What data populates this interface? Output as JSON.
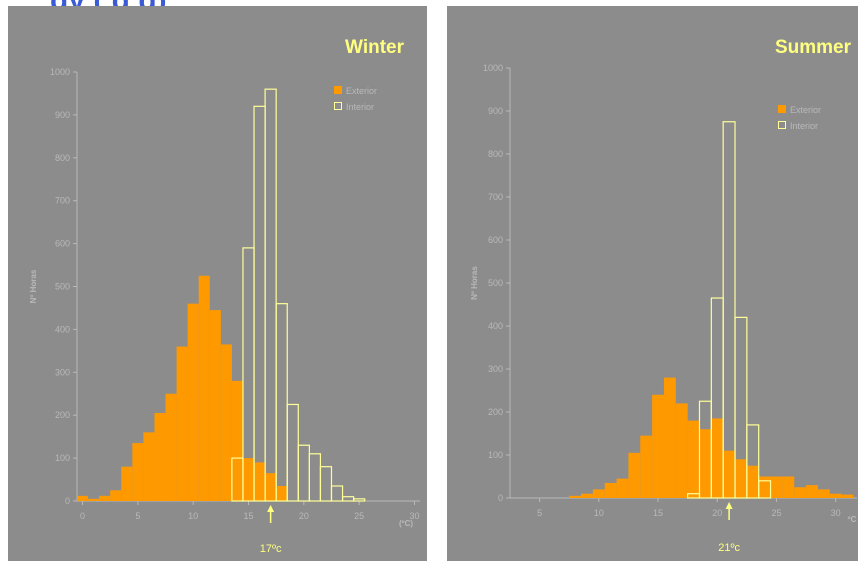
{
  "title": "gy      (      g     g)",
  "colors": {
    "panel": "#8c8c8c",
    "exterior": "#ff9900",
    "interior": "#ffff99",
    "highlight": "#ffff80",
    "axis_text": "#b9b9b9"
  },
  "chart_data": [
    {
      "type": "bar",
      "title": "Winter",
      "ylabel": "Nº Horas",
      "xlabel": "(ºC)",
      "bin_width": 1,
      "xlim": [
        -0.5,
        30.5
      ],
      "ylim": [
        0,
        1000
      ],
      "xticks": [
        0,
        5,
        10,
        15,
        20,
        25,
        30
      ],
      "yticks": [
        0,
        100,
        200,
        300,
        400,
        500,
        600,
        700,
        800,
        900,
        1000
      ],
      "legend_position": "top-right",
      "marker": {
        "value": 17,
        "label": "17ºc"
      },
      "series": [
        {
          "name": "Exterior",
          "style": "filled",
          "x": [
            0,
            1,
            2,
            3,
            4,
            5,
            6,
            7,
            8,
            9,
            10,
            11,
            12,
            13,
            14,
            15,
            16,
            17,
            18
          ],
          "values": [
            12,
            5,
            12,
            25,
            80,
            135,
            160,
            205,
            250,
            360,
            460,
            525,
            445,
            365,
            280,
            100,
            90,
            65,
            35
          ]
        },
        {
          "name": "Interior",
          "style": "outline",
          "x": [
            14,
            15,
            16,
            17,
            18,
            19,
            20,
            21,
            22,
            23,
            24,
            25
          ],
          "values": [
            100,
            590,
            920,
            960,
            460,
            225,
            130,
            110,
            80,
            35,
            10,
            5
          ]
        }
      ]
    },
    {
      "type": "bar",
      "title": "Summer",
      "ylabel": "Nº Horas",
      "xlabel": "ºC",
      "bin_width": 1,
      "xlim": [
        2.5,
        31.8
      ],
      "ylim": [
        0,
        1000
      ],
      "xticks": [
        5,
        10,
        15,
        20,
        25,
        30
      ],
      "yticks": [
        0,
        100,
        200,
        300,
        400,
        500,
        600,
        700,
        800,
        900,
        1000
      ],
      "legend_position": "top-right",
      "marker": {
        "value": 21,
        "label": "21ºc"
      },
      "series": [
        {
          "name": "Exterior",
          "style": "filled",
          "x": [
            8,
            9,
            10,
            11,
            12,
            13,
            14,
            15,
            16,
            17,
            18,
            19,
            20,
            21,
            22,
            23,
            24,
            25,
            26,
            27,
            28,
            29,
            30,
            31
          ],
          "values": [
            5,
            10,
            20,
            35,
            45,
            105,
            145,
            240,
            280,
            220,
            180,
            160,
            185,
            110,
            90,
            75,
            50,
            50,
            50,
            25,
            30,
            20,
            10,
            8
          ]
        },
        {
          "name": "Interior",
          "style": "outline",
          "x": [
            18,
            19,
            20,
            21,
            22,
            23,
            24
          ],
          "values": [
            10,
            225,
            465,
            875,
            420,
            170,
            40
          ]
        }
      ]
    }
  ]
}
